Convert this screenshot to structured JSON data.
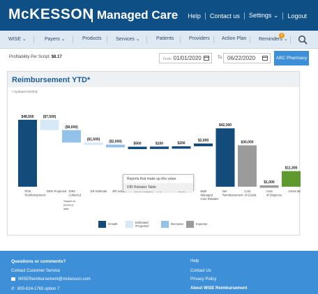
{
  "header": {
    "logo": "McKESSON",
    "product": "Managed Care",
    "links": [
      "Help",
      "Contact us",
      "Settings",
      "Logout"
    ],
    "settings_caret": "⌄"
  },
  "nav": {
    "items": [
      {
        "label": "WISE",
        "caret": true
      },
      {
        "label": "Payers",
        "caret": true
      },
      {
        "label": "Products",
        "caret": false
      },
      {
        "label": "Services",
        "caret": true
      },
      {
        "label": "Patients",
        "caret": false
      },
      {
        "label": "Providers",
        "caret": false
      },
      {
        "label": "Action Plan",
        "caret": false
      },
      {
        "label": "Reminders",
        "caret": true
      }
    ],
    "reminder_badge": "1",
    "search_icon": "search-icon"
  },
  "filters": {
    "profitability_label": "Profitability Per Script:",
    "profitability_value": "$8.17",
    "from_label": "From",
    "from_date": "01/01/2020",
    "to_label": "To",
    "to_date": "06/22/2020",
    "pharmacy_button": "ABC Pharmacy"
  },
  "card": {
    "title": "Reimbursement YTD*",
    "note": "* Updated Monthly"
  },
  "chart_data": {
    "type": "waterfall",
    "ylim": [
      0,
      52000
    ],
    "categories": [
      {
        "label": [
          "POS",
          "Reimbursement"
        ],
        "value": "$48,500",
        "kind": "growth",
        "start": 0,
        "end": 48500
      },
      {
        "label": [
          "DIRs Projected"
        ],
        "value": "($7,500)",
        "kind": "estimated",
        "start": 48500,
        "end": 41000
      },
      {
        "label": [
          "DIRs",
          "Collected"
        ],
        "value": "($9,000)",
        "kind": "decrease",
        "start": 41000,
        "end": 32000,
        "note": [
          "*based on",
          "previous",
          "data"
        ]
      },
      {
        "label": [
          "ER Estimate"
        ],
        "value": "($1,500)",
        "kind": "estimated",
        "start": 32000,
        "end": 30500
      },
      {
        "label": [
          "ER Actual"
        ],
        "value": "($2,000)",
        "kind": "decrease",
        "start": 30500,
        "end": 28500
      },
      {
        "label": [
          "DIRs Rebates"
        ],
        "value": "$500",
        "kind": "growth",
        "start": 28500,
        "end": 29000
      },
      {
        "label": [
          "PAP"
        ],
        "value": "$100",
        "kind": "growth",
        "start": 29000,
        "end": 29100
      },
      {
        "label": [
          "MTM"
        ],
        "value": "$200",
        "kind": "growth",
        "start": 29100,
        "end": 29300
      },
      {
        "label": [
          "Multi",
          "Managed",
          "Care Rebates"
        ],
        "value": "$2,000",
        "kind": "growth",
        "start": 29300,
        "end": 31300
      },
      {
        "label": [
          "Net",
          "Reimbursement"
        ],
        "value": "$42,300",
        "kind": "growth",
        "start": 0,
        "end": 42300
      },
      {
        "label": [
          "Cost",
          "of Goods"
        ],
        "value": "$30,000",
        "kind": "expense",
        "start": 0,
        "end": 30000
      },
      {
        "label": [
          "Cost",
          "of Dispence"
        ],
        "value": "$1,000",
        "kind": "expense",
        "start": 0,
        "end": 1000
      },
      {
        "label": [
          "Gross Margin"
        ],
        "value": "$11,300",
        "kind": "margin",
        "start": 0,
        "end": 11300
      }
    ],
    "colors": {
      "growth": "#134c7a",
      "estimated": "#d7e8f6",
      "decrease": "#92c2ea",
      "expense": "#9b9b9b",
      "margin": "#5e9a30"
    },
    "legend": [
      {
        "key": "growth",
        "label": [
          "Growth"
        ]
      },
      {
        "key": "estimated",
        "label": [
          "Estimated",
          "/Projected"
        ]
      },
      {
        "key": "decrease",
        "label": [
          "Decrease"
        ]
      },
      {
        "key": "expense",
        "label": [
          "Expense"
        ]
      }
    ]
  },
  "tooltip": {
    "line1": "Reports that make up this value",
    "line2": "DIR Rebates Table"
  },
  "footer": {
    "question": "Questions or comments?",
    "contact": "Contact Customer Service",
    "email": "WISEReimbursement@mckesson.com",
    "phone": "800-824-1763 option 7",
    "links": [
      "Help",
      "Contact Us",
      "Privacy Policy",
      "About WISE Reimbursement"
    ]
  }
}
